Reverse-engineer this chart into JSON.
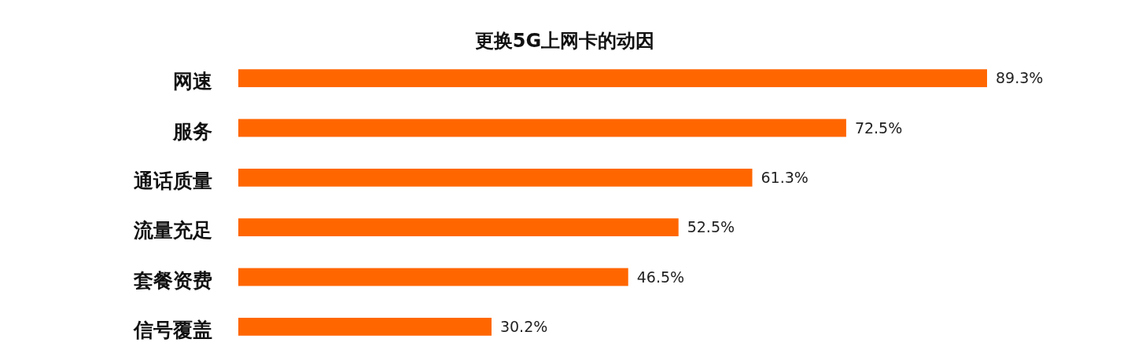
{
  "chart_data": {
    "type": "bar",
    "orientation": "horizontal",
    "title": "更换5G上网卡的动因",
    "categories": [
      "网速",
      "服务",
      "通话质量",
      "流量充足",
      "套餐资费",
      "信号覆盖"
    ],
    "values": [
      89.3,
      72.5,
      61.3,
      52.5,
      46.5,
      30.2
    ],
    "value_labels": [
      "89.3%",
      "72.5%",
      "61.3%",
      "52.5%",
      "46.5%",
      "30.2%"
    ],
    "color": "#ff6600"
  }
}
